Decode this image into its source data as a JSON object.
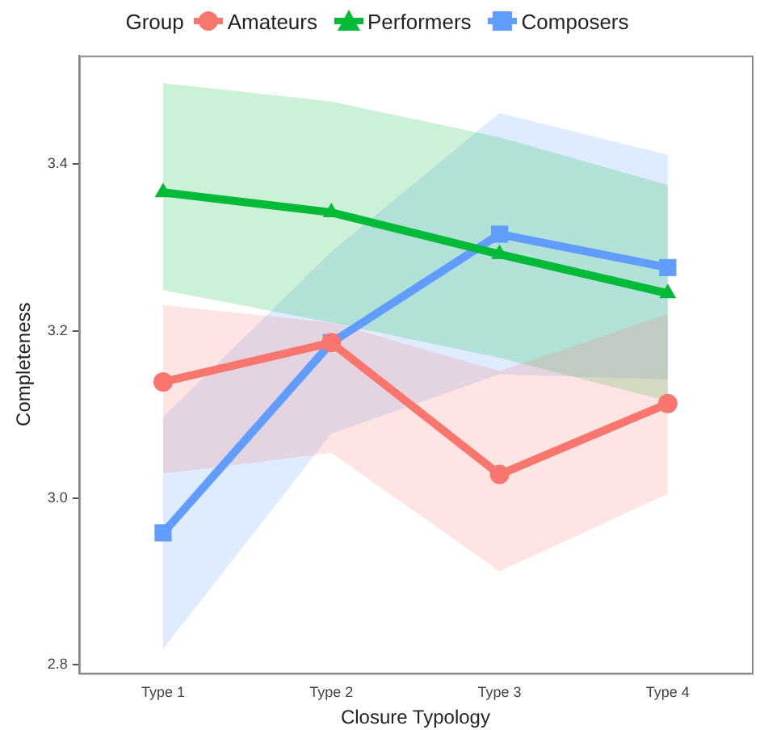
{
  "chart_data": {
    "type": "line",
    "xlabel": "Closure Typology",
    "ylabel": "Completeness",
    "legend_title": "Group",
    "legend": "top",
    "categories": [
      "Type 1",
      "Type 2",
      "Type 3",
      "Type 4"
    ],
    "ylim": [
      2.79,
      3.53
    ],
    "yticks": [
      {
        "value": 2.8,
        "label": "2.8"
      },
      {
        "value": 3.0,
        "label": "3.0"
      },
      {
        "value": 3.2,
        "label": "3.2"
      },
      {
        "value": 3.4,
        "label": "3.4"
      }
    ],
    "grid": false,
    "series": [
      {
        "name": "Amateurs",
        "color": "#f8766d",
        "marker": "circle",
        "values": [
          3.139,
          3.186,
          3.028,
          3.113
        ],
        "lower": [
          3.029,
          3.054,
          2.912,
          3.005
        ],
        "upper": [
          3.231,
          3.21,
          3.152,
          3.22
        ]
      },
      {
        "name": "Performers",
        "color": "#00ba38",
        "marker": "triangle",
        "values": [
          3.366,
          3.342,
          3.292,
          3.245
        ],
        "lower": [
          3.249,
          3.21,
          3.168,
          3.116
        ],
        "upper": [
          3.497,
          3.475,
          3.432,
          3.375
        ]
      },
      {
        "name": "Composers",
        "color": "#619cff",
        "marker": "square",
        "values": [
          2.958,
          3.186,
          3.316,
          3.276
        ],
        "lower": [
          2.819,
          3.077,
          3.148,
          3.142
        ],
        "upper": [
          3.097,
          3.295,
          3.461,
          3.411
        ]
      }
    ]
  }
}
